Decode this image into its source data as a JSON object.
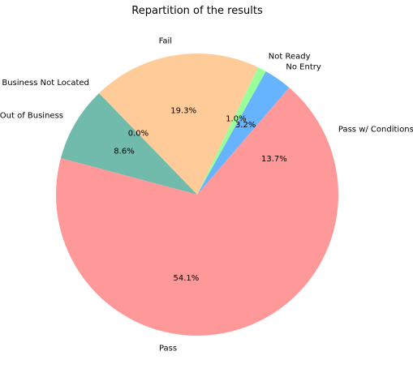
{
  "chart_data": {
    "type": "pie",
    "title": "Repartition of the results",
    "slices": [
      {
        "label": "Pass w/ Conditions",
        "value": 13.7,
        "pct_label": "13.7%",
        "color": "#ff9999"
      },
      {
        "label": "No Entry",
        "value": 3.2,
        "pct_label": "3.2%",
        "color": "#66b3ff"
      },
      {
        "label": "Not Ready",
        "value": 1.0,
        "pct_label": "1.0%",
        "color": "#99ff99"
      },
      {
        "label": "Fail",
        "value": 19.3,
        "pct_label": "19.3%",
        "color": "#ffcc99"
      },
      {
        "label": "Business Not Located",
        "value": 0.0,
        "pct_label": "0.0%",
        "color": "#c2c2f0"
      },
      {
        "label": "Out of Business",
        "value": 8.6,
        "pct_label": "8.6%",
        "color": "#70bbac"
      },
      {
        "label": "Pass",
        "value": 54.1,
        "pct_label": "54.1%",
        "color": "#ff9999"
      }
    ]
  }
}
